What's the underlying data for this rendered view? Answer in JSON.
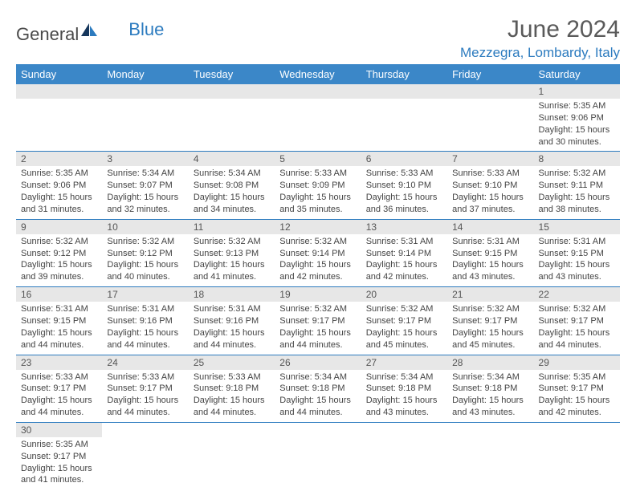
{
  "logo": {
    "text1": "General",
    "text2": "Blue"
  },
  "title": "June 2024",
  "location": "Mezzegra, Lombardy, Italy",
  "colors": {
    "header_bg": "#3b87c8",
    "accent": "#2c7bbf",
    "day_bg": "#e7e7e7",
    "text": "#444444"
  },
  "weekdays": [
    "Sunday",
    "Monday",
    "Tuesday",
    "Wednesday",
    "Thursday",
    "Friday",
    "Saturday"
  ],
  "weeks": [
    [
      null,
      null,
      null,
      null,
      null,
      null,
      {
        "n": "1",
        "sr": "Sunrise: 5:35 AM",
        "ss": "Sunset: 9:06 PM",
        "d1": "Daylight: 15 hours",
        "d2": "and 30 minutes."
      }
    ],
    [
      {
        "n": "2",
        "sr": "Sunrise: 5:35 AM",
        "ss": "Sunset: 9:06 PM",
        "d1": "Daylight: 15 hours",
        "d2": "and 31 minutes."
      },
      {
        "n": "3",
        "sr": "Sunrise: 5:34 AM",
        "ss": "Sunset: 9:07 PM",
        "d1": "Daylight: 15 hours",
        "d2": "and 32 minutes."
      },
      {
        "n": "4",
        "sr": "Sunrise: 5:34 AM",
        "ss": "Sunset: 9:08 PM",
        "d1": "Daylight: 15 hours",
        "d2": "and 34 minutes."
      },
      {
        "n": "5",
        "sr": "Sunrise: 5:33 AM",
        "ss": "Sunset: 9:09 PM",
        "d1": "Daylight: 15 hours",
        "d2": "and 35 minutes."
      },
      {
        "n": "6",
        "sr": "Sunrise: 5:33 AM",
        "ss": "Sunset: 9:10 PM",
        "d1": "Daylight: 15 hours",
        "d2": "and 36 minutes."
      },
      {
        "n": "7",
        "sr": "Sunrise: 5:33 AM",
        "ss": "Sunset: 9:10 PM",
        "d1": "Daylight: 15 hours",
        "d2": "and 37 minutes."
      },
      {
        "n": "8",
        "sr": "Sunrise: 5:32 AM",
        "ss": "Sunset: 9:11 PM",
        "d1": "Daylight: 15 hours",
        "d2": "and 38 minutes."
      }
    ],
    [
      {
        "n": "9",
        "sr": "Sunrise: 5:32 AM",
        "ss": "Sunset: 9:12 PM",
        "d1": "Daylight: 15 hours",
        "d2": "and 39 minutes."
      },
      {
        "n": "10",
        "sr": "Sunrise: 5:32 AM",
        "ss": "Sunset: 9:12 PM",
        "d1": "Daylight: 15 hours",
        "d2": "and 40 minutes."
      },
      {
        "n": "11",
        "sr": "Sunrise: 5:32 AM",
        "ss": "Sunset: 9:13 PM",
        "d1": "Daylight: 15 hours",
        "d2": "and 41 minutes."
      },
      {
        "n": "12",
        "sr": "Sunrise: 5:32 AM",
        "ss": "Sunset: 9:14 PM",
        "d1": "Daylight: 15 hours",
        "d2": "and 42 minutes."
      },
      {
        "n": "13",
        "sr": "Sunrise: 5:31 AM",
        "ss": "Sunset: 9:14 PM",
        "d1": "Daylight: 15 hours",
        "d2": "and 42 minutes."
      },
      {
        "n": "14",
        "sr": "Sunrise: 5:31 AM",
        "ss": "Sunset: 9:15 PM",
        "d1": "Daylight: 15 hours",
        "d2": "and 43 minutes."
      },
      {
        "n": "15",
        "sr": "Sunrise: 5:31 AM",
        "ss": "Sunset: 9:15 PM",
        "d1": "Daylight: 15 hours",
        "d2": "and 43 minutes."
      }
    ],
    [
      {
        "n": "16",
        "sr": "Sunrise: 5:31 AM",
        "ss": "Sunset: 9:15 PM",
        "d1": "Daylight: 15 hours",
        "d2": "and 44 minutes."
      },
      {
        "n": "17",
        "sr": "Sunrise: 5:31 AM",
        "ss": "Sunset: 9:16 PM",
        "d1": "Daylight: 15 hours",
        "d2": "and 44 minutes."
      },
      {
        "n": "18",
        "sr": "Sunrise: 5:31 AM",
        "ss": "Sunset: 9:16 PM",
        "d1": "Daylight: 15 hours",
        "d2": "and 44 minutes."
      },
      {
        "n": "19",
        "sr": "Sunrise: 5:32 AM",
        "ss": "Sunset: 9:17 PM",
        "d1": "Daylight: 15 hours",
        "d2": "and 44 minutes."
      },
      {
        "n": "20",
        "sr": "Sunrise: 5:32 AM",
        "ss": "Sunset: 9:17 PM",
        "d1": "Daylight: 15 hours",
        "d2": "and 45 minutes."
      },
      {
        "n": "21",
        "sr": "Sunrise: 5:32 AM",
        "ss": "Sunset: 9:17 PM",
        "d1": "Daylight: 15 hours",
        "d2": "and 45 minutes."
      },
      {
        "n": "22",
        "sr": "Sunrise: 5:32 AM",
        "ss": "Sunset: 9:17 PM",
        "d1": "Daylight: 15 hours",
        "d2": "and 44 minutes."
      }
    ],
    [
      {
        "n": "23",
        "sr": "Sunrise: 5:33 AM",
        "ss": "Sunset: 9:17 PM",
        "d1": "Daylight: 15 hours",
        "d2": "and 44 minutes."
      },
      {
        "n": "24",
        "sr": "Sunrise: 5:33 AM",
        "ss": "Sunset: 9:17 PM",
        "d1": "Daylight: 15 hours",
        "d2": "and 44 minutes."
      },
      {
        "n": "25",
        "sr": "Sunrise: 5:33 AM",
        "ss": "Sunset: 9:18 PM",
        "d1": "Daylight: 15 hours",
        "d2": "and 44 minutes."
      },
      {
        "n": "26",
        "sr": "Sunrise: 5:34 AM",
        "ss": "Sunset: 9:18 PM",
        "d1": "Daylight: 15 hours",
        "d2": "and 44 minutes."
      },
      {
        "n": "27",
        "sr": "Sunrise: 5:34 AM",
        "ss": "Sunset: 9:18 PM",
        "d1": "Daylight: 15 hours",
        "d2": "and 43 minutes."
      },
      {
        "n": "28",
        "sr": "Sunrise: 5:34 AM",
        "ss": "Sunset: 9:18 PM",
        "d1": "Daylight: 15 hours",
        "d2": "and 43 minutes."
      },
      {
        "n": "29",
        "sr": "Sunrise: 5:35 AM",
        "ss": "Sunset: 9:17 PM",
        "d1": "Daylight: 15 hours",
        "d2": "and 42 minutes."
      }
    ],
    [
      {
        "n": "30",
        "sr": "Sunrise: 5:35 AM",
        "ss": "Sunset: 9:17 PM",
        "d1": "Daylight: 15 hours",
        "d2": "and 41 minutes."
      },
      null,
      null,
      null,
      null,
      null,
      null
    ]
  ]
}
